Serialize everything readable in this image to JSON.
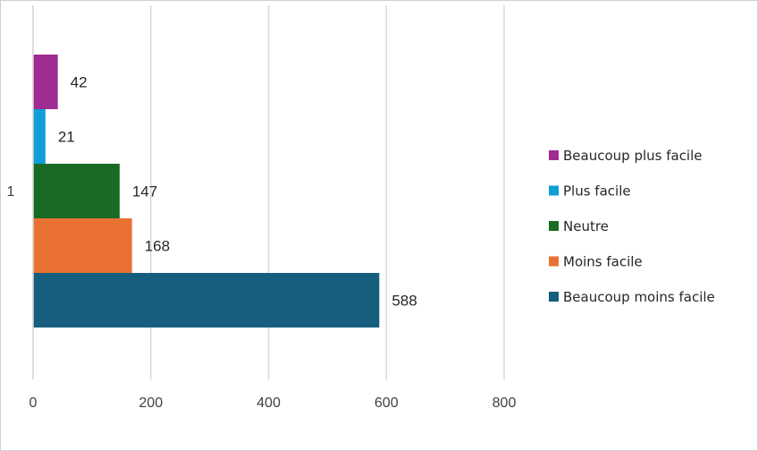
{
  "chart_data": {
    "type": "bar",
    "orientation": "horizontal",
    "categories": [
      "1"
    ],
    "series": [
      {
        "name": "Beaucoup moins facile",
        "values": [
          588
        ],
        "color": "#155E7E"
      },
      {
        "name": "Moins facile",
        "values": [
          168
        ],
        "color": "#E97132"
      },
      {
        "name": "Neutre",
        "values": [
          147
        ],
        "color": "#196B24"
      },
      {
        "name": "Plus facile",
        "values": [
          21
        ],
        "color": "#0F9ED5"
      },
      {
        "name": "Beaucoup plus facile",
        "values": [
          42
        ],
        "color": "#A02B93"
      }
    ],
    "data_labels": [
      "588",
      "168",
      "147",
      "21",
      "42"
    ],
    "xlim": [
      0,
      800
    ],
    "x_ticks": [
      0,
      200,
      400,
      600,
      800
    ],
    "x_tick_labels": [
      "0",
      "200",
      "400",
      "600",
      "800"
    ],
    "grid": true,
    "legend_position": "right",
    "title": "",
    "xlabel": "",
    "ylabel": ""
  }
}
